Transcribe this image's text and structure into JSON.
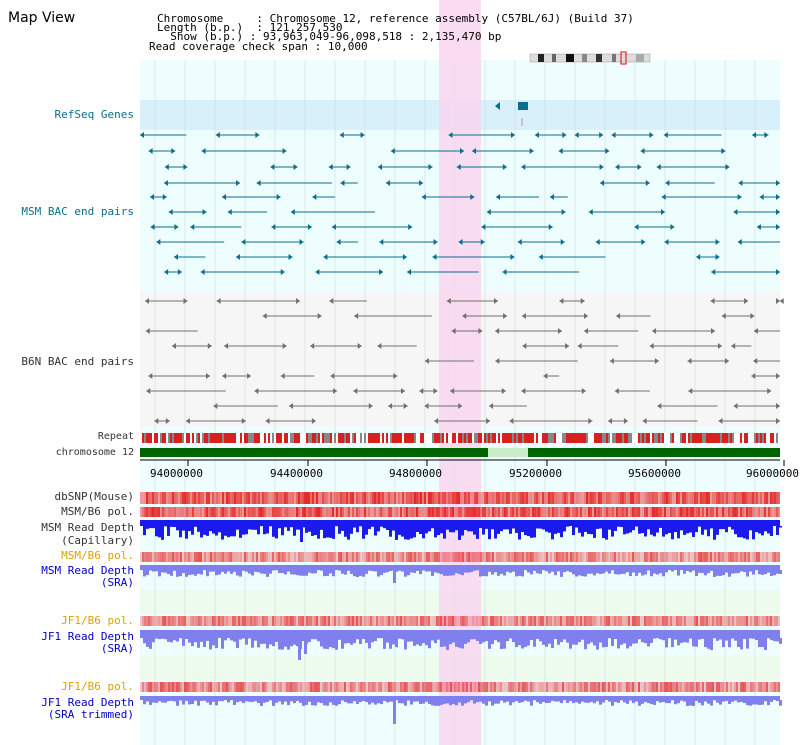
{
  "header": {
    "title": "Map View",
    "chromosome_label": "Chromosome",
    "chromosome_value": "Chromosome 12, reference assembly (C57BL/6J) (Build 37)",
    "length_label": "Length (b.p.)",
    "length_value": "121,257,530",
    "show_label": "Show (b.p.)",
    "show_value": "93,963,049-96,098,518 : 2,135,470 bp",
    "span_label": "Read coverage check span",
    "span_value": "10,000"
  },
  "tracks": {
    "refseq": "RefSeq Genes",
    "msm_bac": "MSM BAC end pairs",
    "b6n_bac": "B6N BAC end pairs",
    "repeat": "Repeat",
    "chromosome": "chromosome 12",
    "dbsnp": "dbSNP(Mouse)",
    "msm_pol1": "MSM/B6 pol.",
    "msm_depth_cap_1": "MSM Read Depth",
    "msm_depth_cap_2": "(Capillary)",
    "msm_pol2": "MSM/B6 pol.",
    "msm_depth_sra_1": "MSM Read Depth",
    "msm_depth_sra_2": "(SRA)",
    "jf1_pol1": "JF1/B6 pol.",
    "jf1_depth_sra_1": "JF1 Read Depth",
    "jf1_depth_sra_2": "(SRA)",
    "jf1_pol2": "JF1/B6 pol.",
    "jf1_depth_trim_1": "JF1 Read Depth",
    "jf1_depth_trim_2": "(SRA trimmed)"
  },
  "axis": {
    "ticks": [
      "94000000",
      "94400000",
      "94800000",
      "95200000",
      "95600000",
      "96000000"
    ]
  },
  "colors": {
    "panel_bg": "#eefefe",
    "refseq_bg": "#d8f0fa",
    "highlight": "#f8d6f0",
    "teal": "#0a6e8a",
    "gray": "#707070",
    "chrom_green": "#006400",
    "depth_blue": "#1a1aee",
    "depth_lavender": "#7f7fee"
  }
}
